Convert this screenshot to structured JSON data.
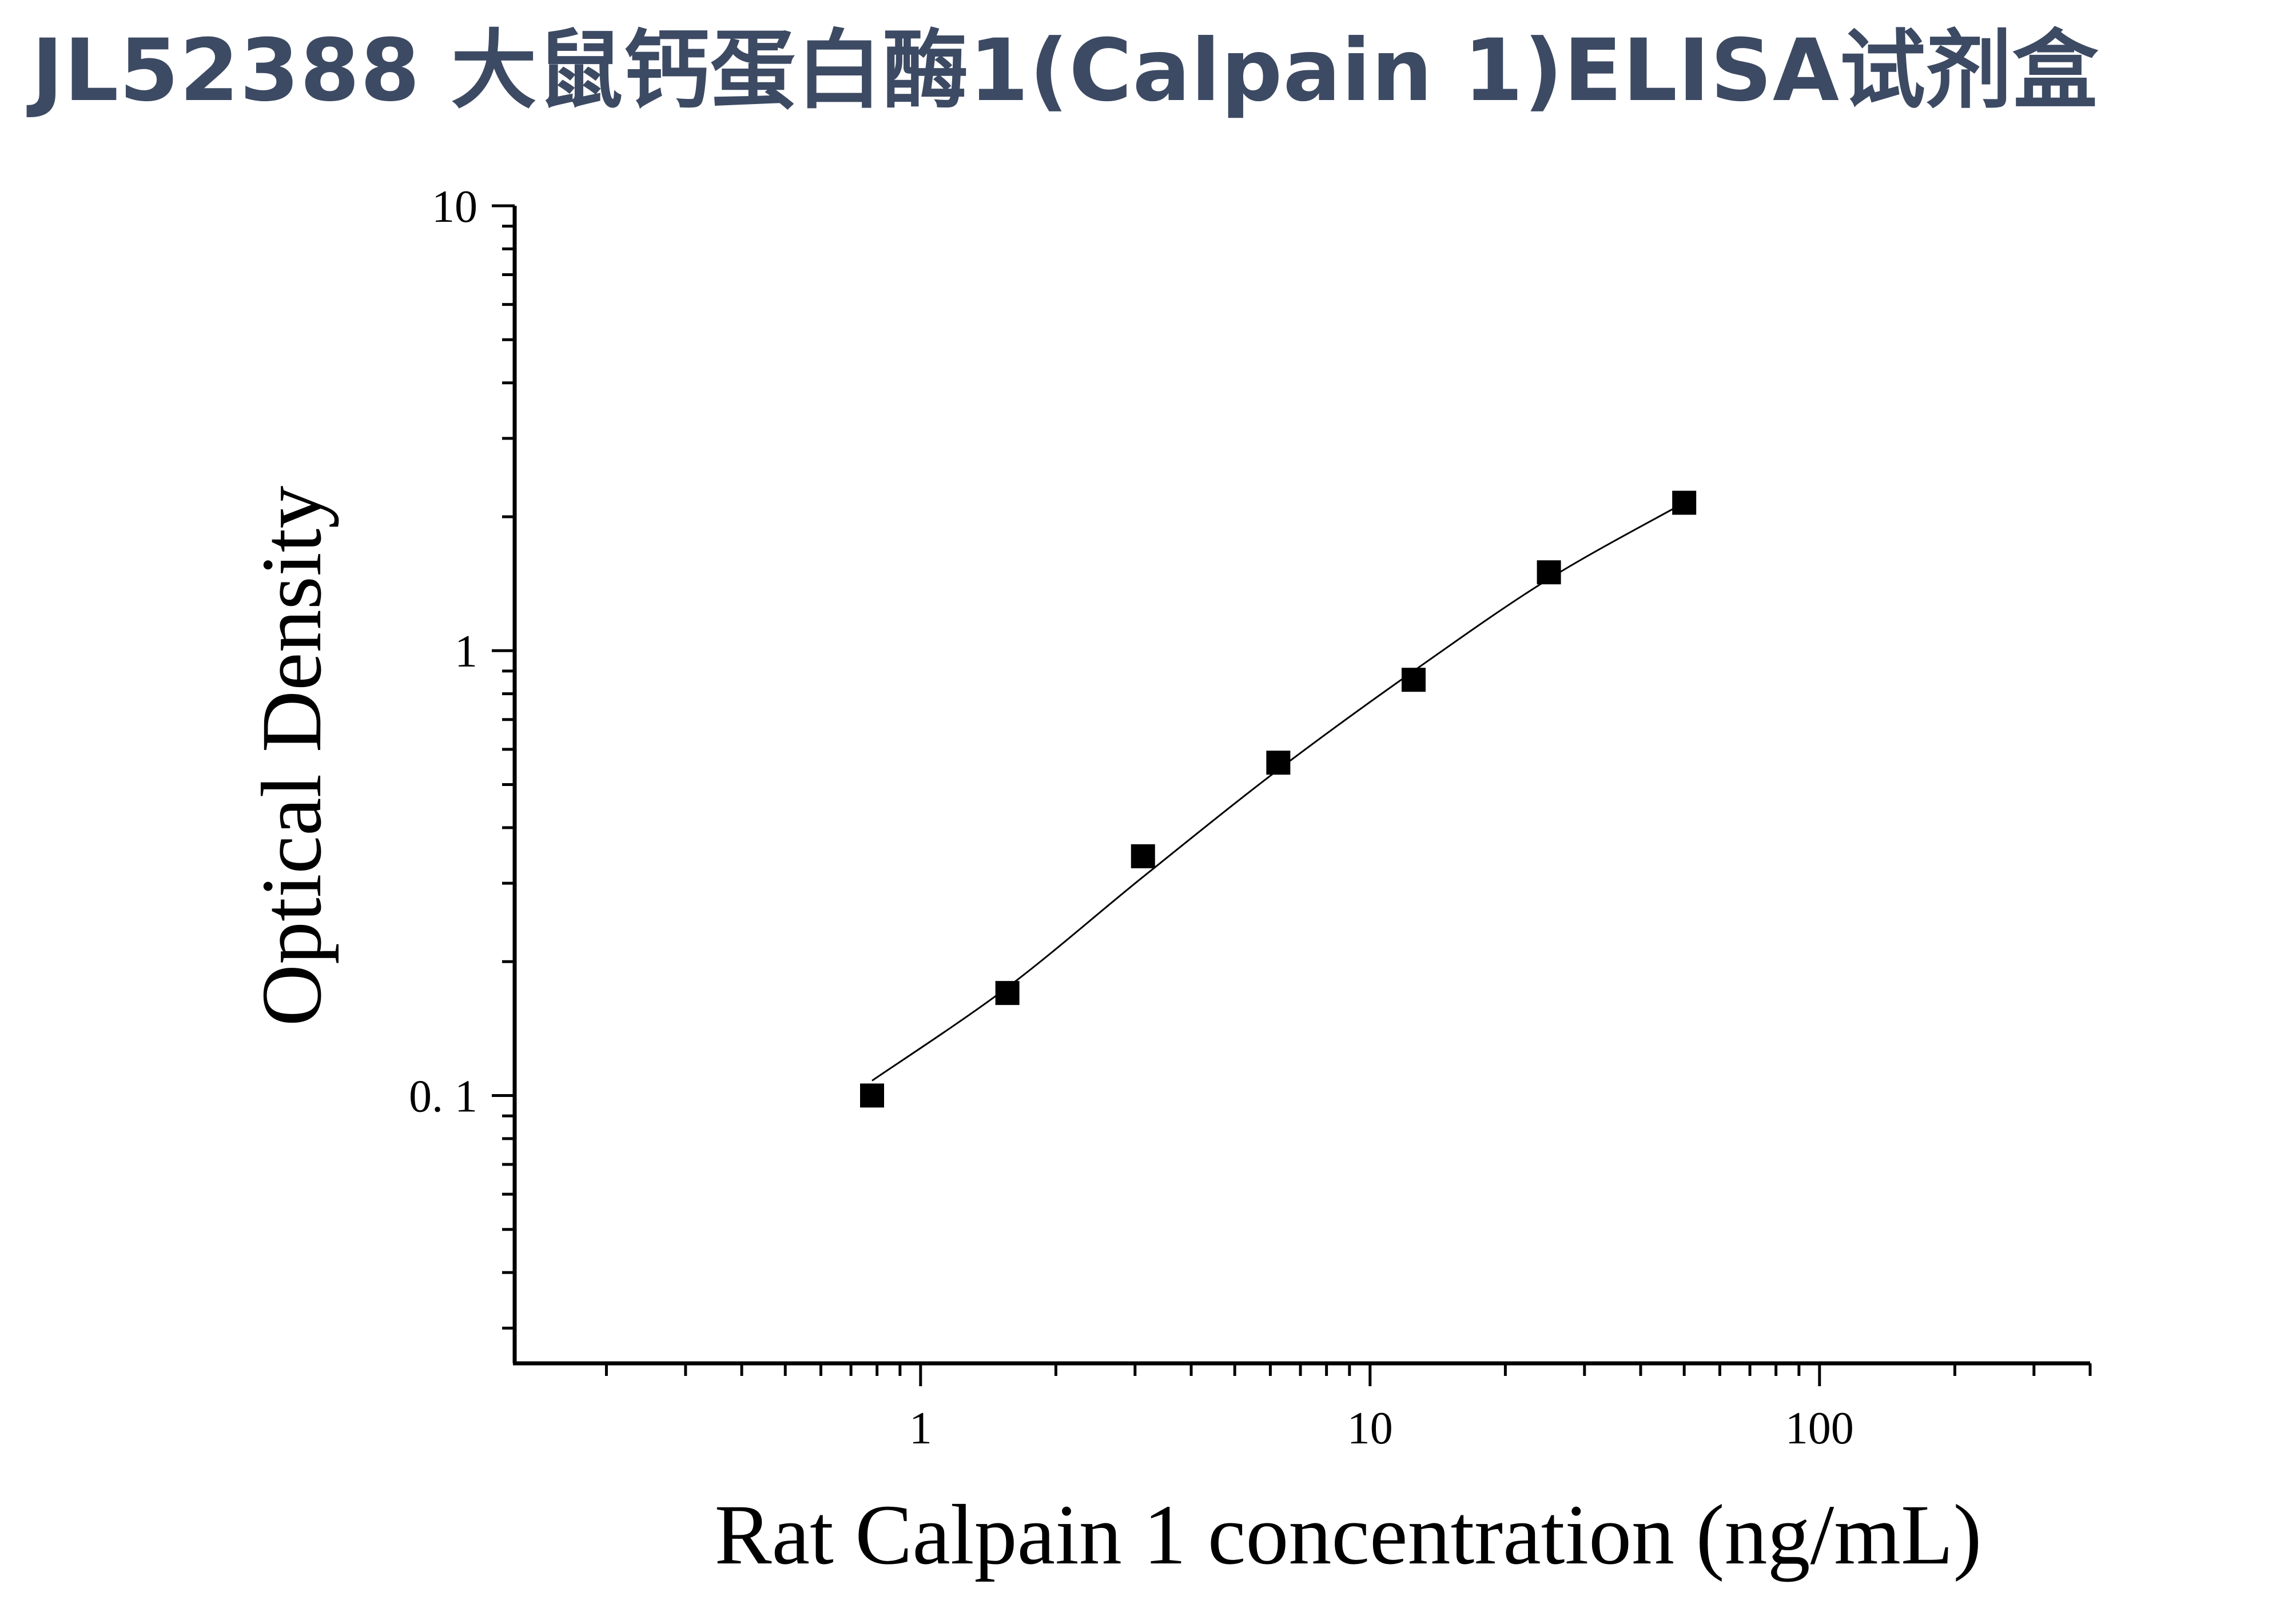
{
  "page": {
    "title": "JL52388 大鼠钙蛋白酶1(Calpain 1)ELISA试剂盒"
  },
  "chart_data": {
    "type": "scatter",
    "title": "",
    "xlabel": "Rat Calpain 1 concentration (ng/mL)",
    "ylabel": "Optical Density",
    "x_scale": "log",
    "y_scale": "log",
    "xlim": [
      0.125,
      400
    ],
    "ylim": [
      0.025,
      10
    ],
    "x_ticks": [
      1,
      10,
      100
    ],
    "x_tick_labels": [
      "1",
      "10",
      "100"
    ],
    "y_ticks": [
      0.1,
      1,
      10
    ],
    "y_tick_labels": [
      "0. 1",
      "1",
      "10"
    ],
    "grid": false,
    "series": [
      {
        "marker": "square",
        "color": "#000000",
        "x": [
          0.78,
          1.56,
          3.125,
          6.25,
          12.5,
          25,
          50
        ],
        "y": [
          0.1,
          0.17,
          0.345,
          0.56,
          0.86,
          1.5,
          2.15
        ]
      }
    ],
    "fit_curve": {
      "color": "#000000",
      "x": [
        0.78,
        1.56,
        3.125,
        6.25,
        12.5,
        25,
        50
      ],
      "y": [
        0.108,
        0.175,
        0.31,
        0.54,
        0.9,
        1.45,
        2.15
      ]
    }
  }
}
